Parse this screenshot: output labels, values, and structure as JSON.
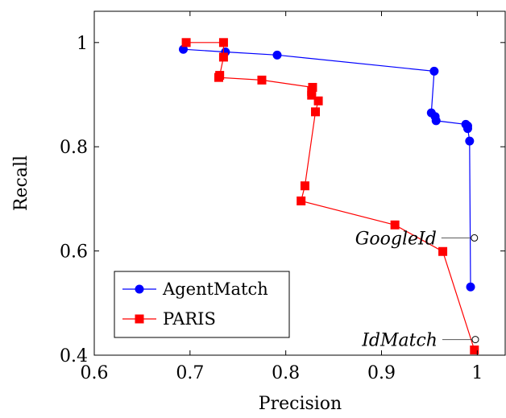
{
  "chart_data": {
    "type": "line",
    "title": "",
    "xlabel": "Precision",
    "ylabel": "Recall",
    "xlim": [
      0.6,
      1.03
    ],
    "ylim": [
      0.4,
      1.06
    ],
    "xticks": [
      0.6,
      0.7,
      0.8,
      0.9,
      1.0
    ],
    "xtick_labels": [
      "0.6",
      "0.7",
      "0.8",
      "0.9",
      "1"
    ],
    "yticks": [
      0.4,
      0.6,
      0.8,
      1.0
    ],
    "ytick_labels": [
      "0.4",
      "0.6",
      "0.8",
      "1"
    ],
    "grid": false,
    "legend_position": "bottom-left",
    "series": [
      {
        "name": "AgentMatch",
        "color": "#0000ff",
        "marker": "circle",
        "points": [
          [
            0.693,
            0.987
          ],
          [
            0.737,
            0.982
          ],
          [
            0.791,
            0.976
          ],
          [
            0.955,
            0.945
          ],
          [
            0.952,
            0.865
          ],
          [
            0.956,
            0.858
          ],
          [
            0.957,
            0.85
          ],
          [
            0.988,
            0.843
          ],
          [
            0.99,
            0.84
          ],
          [
            0.99,
            0.835
          ],
          [
            0.992,
            0.811
          ],
          [
            0.993,
            0.531
          ]
        ]
      },
      {
        "name": "PARIS",
        "color": "#ff0000",
        "marker": "square",
        "points": [
          [
            0.696,
            1.0
          ],
          [
            0.735,
            1.0
          ],
          [
            0.735,
            0.972
          ],
          [
            0.731,
            0.937
          ],
          [
            0.73,
            0.933
          ],
          [
            0.775,
            0.928
          ],
          [
            0.828,
            0.914
          ],
          [
            0.827,
            0.906
          ],
          [
            0.827,
            0.899
          ],
          [
            0.834,
            0.888
          ],
          [
            0.831,
            0.867
          ],
          [
            0.82,
            0.725
          ],
          [
            0.816,
            0.696
          ],
          [
            0.914,
            0.65
          ],
          [
            0.964,
            0.599
          ],
          [
            0.997,
            0.41
          ]
        ]
      }
    ],
    "annotations": [
      {
        "label": "GoogleId",
        "x": 0.997,
        "y": 0.625
      },
      {
        "label": "IdMatch",
        "x": 0.998,
        "y": 0.43
      }
    ]
  }
}
